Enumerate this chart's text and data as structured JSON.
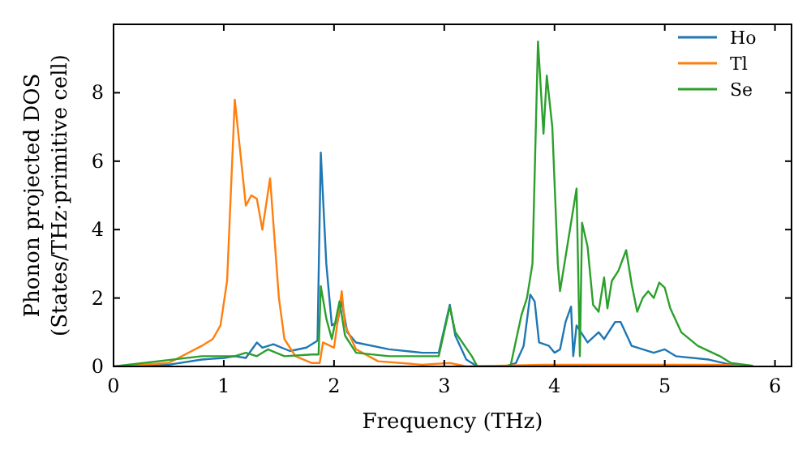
{
  "chart_data": {
    "type": "line",
    "xlabel": "Frequency (THz)",
    "ylabel": "Phonon projected DOS\n(States/THz·primitive cell)",
    "xlim": [
      0,
      6.15
    ],
    "ylim": [
      0,
      10
    ],
    "xticks": [
      0,
      1,
      2,
      3,
      4,
      5,
      6
    ],
    "yticks": [
      0,
      2,
      4,
      6,
      8
    ],
    "legend": "top right",
    "grid": false,
    "series": [
      {
        "name": "Ho",
        "color": "#1f77b4",
        "x": [
          0,
          0.5,
          0.8,
          1.0,
          1.1,
          1.2,
          1.3,
          1.35,
          1.45,
          1.6,
          1.75,
          1.85,
          1.88,
          1.93,
          1.98,
          2.03,
          2.07,
          2.12,
          2.2,
          2.5,
          2.8,
          2.95,
          3.05,
          3.1,
          3.2,
          3.3,
          3.55,
          3.65,
          3.72,
          3.78,
          3.82,
          3.86,
          3.95,
          4.0,
          4.05,
          4.1,
          4.15,
          4.17,
          4.2,
          4.3,
          4.4,
          4.45,
          4.55,
          4.6,
          4.7,
          4.9,
          5.0,
          5.1,
          5.4,
          5.6,
          5.8
        ],
        "values": [
          0,
          0.05,
          0.2,
          0.25,
          0.3,
          0.25,
          0.7,
          0.55,
          0.65,
          0.45,
          0.55,
          0.75,
          6.25,
          3,
          1.2,
          1.3,
          1.9,
          1.0,
          0.7,
          0.5,
          0.4,
          0.4,
          1.8,
          0.9,
          0.2,
          0,
          0,
          0.1,
          0.6,
          2.1,
          1.9,
          0.7,
          0.6,
          0.4,
          0.5,
          1.3,
          1.75,
          0.3,
          1.2,
          0.7,
          1.0,
          0.8,
          1.3,
          1.3,
          0.6,
          0.4,
          0.5,
          0.3,
          0.2,
          0.05,
          0
        ]
      },
      {
        "name": "Tl",
        "color": "#ff7f0e",
        "x": [
          0,
          0.5,
          0.8,
          0.9,
          0.97,
          1.03,
          1.1,
          1.2,
          1.25,
          1.3,
          1.35,
          1.42,
          1.5,
          1.55,
          1.65,
          1.8,
          1.87,
          1.9,
          2.0,
          2.07,
          2.1,
          2.2,
          2.4,
          2.8,
          3.05,
          3.2,
          3.9,
          5.5,
          5.8
        ],
        "values": [
          0,
          0.1,
          0.6,
          0.8,
          1.2,
          2.5,
          7.8,
          4.7,
          5.0,
          4.9,
          4.0,
          5.5,
          2.0,
          0.8,
          0.3,
          0.1,
          0.1,
          0.7,
          0.55,
          2.2,
          1.2,
          0.5,
          0.15,
          0.05,
          0.1,
          0,
          0.05,
          0.05,
          0
        ]
      },
      {
        "name": "Se",
        "color": "#2ca02c",
        "x": [
          0,
          0.8,
          1.1,
          1.2,
          1.3,
          1.4,
          1.55,
          1.8,
          1.86,
          1.88,
          1.93,
          1.98,
          2.05,
          2.1,
          2.2,
          2.5,
          2.95,
          3.05,
          3.1,
          3.25,
          3.3,
          3.6,
          3.7,
          3.75,
          3.8,
          3.85,
          3.9,
          3.93,
          3.98,
          4.03,
          4.05,
          4.15,
          4.2,
          4.23,
          4.25,
          4.3,
          4.35,
          4.4,
          4.45,
          4.48,
          4.52,
          4.58,
          4.65,
          4.7,
          4.75,
          4.8,
          4.85,
          4.9,
          4.95,
          5.0,
          5.05,
          5.15,
          5.3,
          5.5,
          5.6,
          5.8
        ],
        "values": [
          0,
          0.3,
          0.3,
          0.4,
          0.3,
          0.5,
          0.3,
          0.35,
          0.35,
          2.35,
          1.4,
          0.8,
          1.9,
          0.9,
          0.4,
          0.3,
          0.3,
          1.75,
          1.0,
          0.3,
          0,
          0,
          1.5,
          2.0,
          3.0,
          9.5,
          6.8,
          8.5,
          7.0,
          3.0,
          2.2,
          4.2,
          5.2,
          0.3,
          4.2,
          3.5,
          1.8,
          1.6,
          2.6,
          1.7,
          2.5,
          2.8,
          3.4,
          2.4,
          1.6,
          2.0,
          2.2,
          2.0,
          2.45,
          2.3,
          1.7,
          1.0,
          0.6,
          0.3,
          0.1,
          0.02
        ]
      }
    ]
  }
}
